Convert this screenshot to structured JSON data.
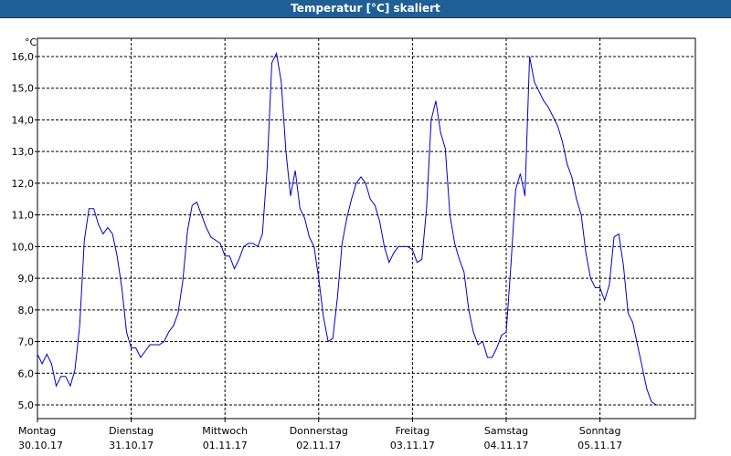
{
  "window": {
    "title": "Temperatur [°C] skaliert"
  },
  "chart_data": {
    "type": "line",
    "title": "Temperatur [°C] skaliert",
    "ylabel": "°C",
    "xlabel": "",
    "ylim": [
      4.5,
      17.0
    ],
    "yticks": [
      "5,0",
      "6,0",
      "7,0",
      "8,0",
      "9,0",
      "10,0",
      "11,0",
      "12,0",
      "13,0",
      "14,0",
      "15,0",
      "16,0"
    ],
    "xticks": [
      {
        "day": "Montag",
        "date": "30.10.17"
      },
      {
        "day": "Dienstag",
        "date": "31.10.17"
      },
      {
        "day": "Mittwoch",
        "date": "01.11.17"
      },
      {
        "day": "Donnerstag",
        "date": "02.11.17"
      },
      {
        "day": "Freitag",
        "date": "03.11.17"
      },
      {
        "day": "Samstag",
        "date": "04.11.17"
      },
      {
        "day": "Sonntag",
        "date": "05.11.17"
      }
    ],
    "grid": true,
    "line_color": "#0000c8",
    "series": [
      {
        "points": [
          [
            0.0,
            6.6
          ],
          [
            0.05,
            6.3
          ],
          [
            0.1,
            6.6
          ],
          [
            0.15,
            6.3
          ],
          [
            0.2,
            5.6
          ],
          [
            0.25,
            5.9
          ],
          [
            0.3,
            5.9
          ],
          [
            0.35,
            5.6
          ],
          [
            0.4,
            6.1
          ],
          [
            0.45,
            7.5
          ],
          [
            0.5,
            10.2
          ],
          [
            0.55,
            11.2
          ],
          [
            0.6,
            11.2
          ],
          [
            0.65,
            10.7
          ],
          [
            0.7,
            10.4
          ],
          [
            0.75,
            10.6
          ],
          [
            0.8,
            10.4
          ],
          [
            0.85,
            9.7
          ],
          [
            0.9,
            8.7
          ],
          [
            0.95,
            7.3
          ],
          [
            1.0,
            6.8
          ],
          [
            1.05,
            6.8
          ],
          [
            1.1,
            6.5
          ],
          [
            1.15,
            6.7
          ],
          [
            1.2,
            6.9
          ],
          [
            1.25,
            6.9
          ],
          [
            1.3,
            6.9
          ],
          [
            1.35,
            7.0
          ],
          [
            1.4,
            7.3
          ],
          [
            1.45,
            7.5
          ],
          [
            1.5,
            7.9
          ],
          [
            1.55,
            8.9
          ],
          [
            1.6,
            10.5
          ],
          [
            1.65,
            11.3
          ],
          [
            1.7,
            11.4
          ],
          [
            1.75,
            11.0
          ],
          [
            1.8,
            10.6
          ],
          [
            1.85,
            10.3
          ],
          [
            1.9,
            10.2
          ],
          [
            1.95,
            10.1
          ],
          [
            2.0,
            9.7
          ],
          [
            2.05,
            9.7
          ],
          [
            2.1,
            9.3
          ],
          [
            2.15,
            9.6
          ],
          [
            2.2,
            10.0
          ],
          [
            2.25,
            10.1
          ],
          [
            2.3,
            10.1
          ],
          [
            2.35,
            10.0
          ],
          [
            2.4,
            10.4
          ],
          [
            2.45,
            12.5
          ],
          [
            2.5,
            15.8
          ],
          [
            2.55,
            16.1
          ],
          [
            2.6,
            15.2
          ],
          [
            2.65,
            13.0
          ],
          [
            2.7,
            11.6
          ],
          [
            2.75,
            12.4
          ],
          [
            2.8,
            11.2
          ],
          [
            2.85,
            10.9
          ],
          [
            2.9,
            10.3
          ],
          [
            2.95,
            10.0
          ],
          [
            3.0,
            9.0
          ],
          [
            3.05,
            7.8
          ],
          [
            3.1,
            7.0
          ],
          [
            3.15,
            7.1
          ],
          [
            3.2,
            8.4
          ],
          [
            3.25,
            10.1
          ],
          [
            3.3,
            10.9
          ],
          [
            3.35,
            11.5
          ],
          [
            3.4,
            12.0
          ],
          [
            3.45,
            12.2
          ],
          [
            3.5,
            12.0
          ],
          [
            3.55,
            11.5
          ],
          [
            3.6,
            11.3
          ],
          [
            3.65,
            10.8
          ],
          [
            3.7,
            10.0
          ],
          [
            3.75,
            9.5
          ],
          [
            3.8,
            9.8
          ],
          [
            3.85,
            10.0
          ],
          [
            3.9,
            10.0
          ],
          [
            3.95,
            10.0
          ],
          [
            4.0,
            9.9
          ],
          [
            4.05,
            9.5
          ],
          [
            4.1,
            9.6
          ],
          [
            4.15,
            11.2
          ],
          [
            4.2,
            14.0
          ],
          [
            4.25,
            14.6
          ],
          [
            4.3,
            13.6
          ],
          [
            4.35,
            13.1
          ],
          [
            4.4,
            11.0
          ],
          [
            4.45,
            10.1
          ],
          [
            4.5,
            9.6
          ],
          [
            4.55,
            9.2
          ],
          [
            4.6,
            8.0
          ],
          [
            4.65,
            7.3
          ],
          [
            4.7,
            6.9
          ],
          [
            4.75,
            7.0
          ],
          [
            4.8,
            6.5
          ],
          [
            4.85,
            6.5
          ],
          [
            4.9,
            6.8
          ],
          [
            4.95,
            7.2
          ],
          [
            5.0,
            7.3
          ],
          [
            5.05,
            9.4
          ],
          [
            5.1,
            11.8
          ],
          [
            5.15,
            12.3
          ],
          [
            5.2,
            11.6
          ],
          [
            5.25,
            16.0
          ],
          [
            5.3,
            15.2
          ],
          [
            5.35,
            14.9
          ],
          [
            5.4,
            14.6
          ],
          [
            5.45,
            14.4
          ],
          [
            5.5,
            14.1
          ],
          [
            5.55,
            13.8
          ],
          [
            5.6,
            13.3
          ],
          [
            5.65,
            12.6
          ],
          [
            5.7,
            12.2
          ],
          [
            5.75,
            11.5
          ],
          [
            5.8,
            11.0
          ],
          [
            5.85,
            9.8
          ],
          [
            5.9,
            9.0
          ],
          [
            5.95,
            8.7
          ],
          [
            6.0,
            8.7
          ],
          [
            6.05,
            8.3
          ],
          [
            6.1,
            8.8
          ],
          [
            6.15,
            10.3
          ],
          [
            6.2,
            10.4
          ],
          [
            6.25,
            9.4
          ],
          [
            6.3,
            7.9
          ],
          [
            6.35,
            7.6
          ],
          [
            6.4,
            6.9
          ],
          [
            6.45,
            6.2
          ],
          [
            6.5,
            5.5
          ],
          [
            6.55,
            5.1
          ],
          [
            6.6,
            5.0
          ],
          [
            6.62,
            5.0
          ]
        ]
      }
    ]
  }
}
